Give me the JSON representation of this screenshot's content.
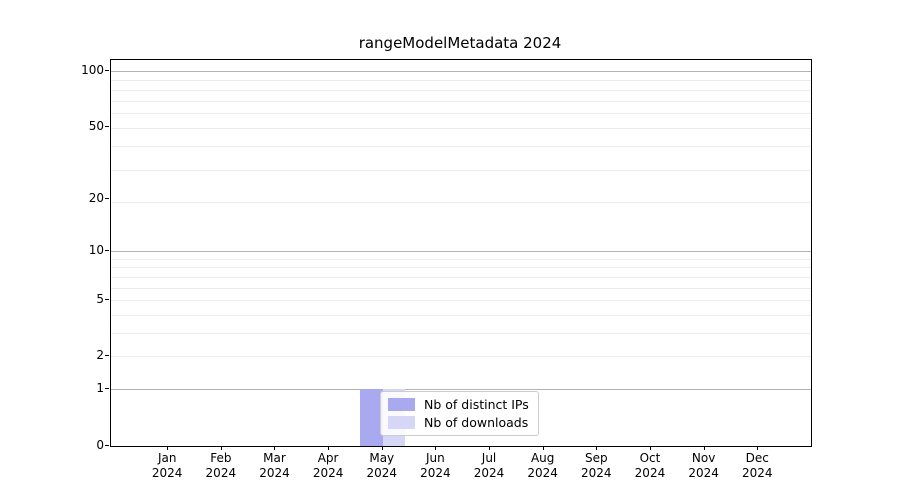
{
  "title": "rangeModelMetadata 2024",
  "colors": {
    "distinct_ips_bar": "#a9a9f0",
    "downloads_bar": "#d6d6f7",
    "major_gridline": "#b3b3b3",
    "minor_gridline": "#ececec",
    "axis": "#000000",
    "legend_border": "#cccccc",
    "background": "#ffffff"
  },
  "legend": {
    "items": [
      {
        "label": "Nb of distinct IPs",
        "color": "#a9a9f0"
      },
      {
        "label": "Nb of downloads",
        "color": "#d6d6f7"
      }
    ]
  },
  "chart_data": {
    "type": "bar",
    "title": "rangeModelMetadata 2024",
    "categories": [
      "Jan",
      "Feb",
      "Mar",
      "Apr",
      "May",
      "Jun",
      "Jul",
      "Aug",
      "Sep",
      "Oct",
      "Nov",
      "Dec"
    ],
    "category_year": "2024",
    "series": [
      {
        "name": "Nb of distinct IPs",
        "color": "#a9a9f0",
        "values": [
          0,
          0,
          0,
          0,
          1,
          0,
          0,
          0,
          0,
          0,
          0,
          0
        ]
      },
      {
        "name": "Nb of downloads",
        "color": "#d6d6f7",
        "values": [
          0,
          0,
          0,
          0,
          1,
          0,
          0,
          0,
          0,
          0,
          0,
          0
        ]
      }
    ],
    "xlabel": "",
    "ylabel": "",
    "y_axis": {
      "scale": "log10(value+1)",
      "tick_labels": [
        100,
        50,
        20,
        10,
        5,
        2,
        1,
        0
      ],
      "major_grid_values": [
        1,
        10,
        100
      ],
      "minor_grid_plotted_positions": [
        3,
        4,
        5,
        6,
        7,
        8,
        9,
        10,
        20,
        30,
        40,
        50,
        60,
        70,
        80,
        90
      ],
      "range_labeled": [
        0,
        100
      ]
    },
    "grid": true,
    "legend_position": "inside lower-center, overlapping May bars"
  }
}
